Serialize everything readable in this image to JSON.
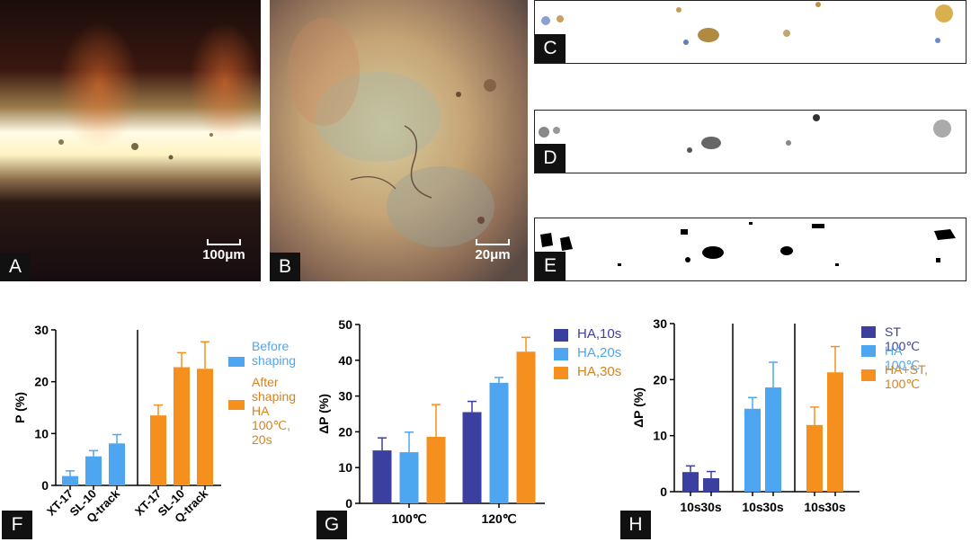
{
  "panels": {
    "a": {
      "letter": "A",
      "scale_label": "100μm"
    },
    "b": {
      "letter": "B",
      "scale_label": "20μm"
    },
    "c": {
      "letter": "C"
    },
    "d": {
      "letter": "D"
    },
    "e": {
      "letter": "E"
    }
  },
  "colors": {
    "dark_blue": "#3b3fa0",
    "light_blue": "#4ea6f0",
    "orange": "#f5901e"
  },
  "chart_data": [
    {
      "panel": "F",
      "type": "bar",
      "ylabel": "P (%)",
      "ylim": [
        0,
        30
      ],
      "yticks": [
        0,
        10,
        20,
        30
      ],
      "categories": [
        "XT-17",
        "SL-10",
        "Q-track",
        "XT-17",
        "SL-10",
        "Q-track"
      ],
      "series": [
        {
          "name": "Before\nshaping",
          "color": "#4ea6f0",
          "values": [
            1.8,
            5.6,
            8.1,
            null,
            null,
            null
          ],
          "errors": [
            1.0,
            1.1,
            1.7,
            null,
            null,
            null
          ]
        },
        {
          "name": "After\nshaping\nHA 100℃,\n20s",
          "color": "#f5901e",
          "values": [
            null,
            null,
            null,
            13.5,
            22.8,
            22.5
          ],
          "errors": [
            null,
            null,
            null,
            2.0,
            2.8,
            5.2
          ]
        }
      ],
      "legend": "right"
    },
    {
      "panel": "G",
      "type": "bar",
      "ylabel": "ΔP (%)",
      "ylim": [
        0,
        50
      ],
      "yticks": [
        0,
        10,
        20,
        30,
        40,
        50
      ],
      "categories": [
        "100℃",
        "120℃"
      ],
      "series": [
        {
          "name": "HA,10s",
          "color": "#3b3fa0",
          "values": [
            14.8,
            25.5
          ],
          "errors": [
            3.5,
            3.0
          ]
        },
        {
          "name": "HA,20s",
          "color": "#4ea6f0",
          "values": [
            14.3,
            33.7
          ],
          "errors": [
            5.6,
            1.5
          ]
        },
        {
          "name": "HA,30s",
          "color": "#f5901e",
          "values": [
            18.6,
            42.4
          ],
          "errors": [
            9.0,
            4.0
          ]
        }
      ],
      "legend": "top-right"
    },
    {
      "panel": "H",
      "type": "bar",
      "ylabel": "ΔP (%)",
      "ylim": [
        0,
        30
      ],
      "yticks": [
        0,
        10,
        20,
        30
      ],
      "categories": [
        "10s",
        "30s",
        "10s",
        "30s",
        "10s",
        "30s"
      ],
      "series": [
        {
          "name": "ST 100℃",
          "color": "#3b3fa0",
          "values": [
            3.5,
            2.4,
            null,
            null,
            null,
            null
          ],
          "errors": [
            1.1,
            1.2,
            null,
            null,
            null,
            null
          ]
        },
        {
          "name": "HA 100℃",
          "color": "#4ea6f0",
          "values": [
            null,
            null,
            14.8,
            18.6,
            null,
            null
          ],
          "errors": [
            null,
            null,
            2.0,
            4.5,
            null,
            null
          ]
        },
        {
          "name": "HA+ST,\n100℃",
          "color": "#f5901e",
          "values": [
            null,
            null,
            null,
            null,
            11.9,
            21.3
          ],
          "errors": [
            null,
            null,
            null,
            null,
            3.2,
            4.6
          ]
        }
      ],
      "legend": "top-right"
    }
  ]
}
